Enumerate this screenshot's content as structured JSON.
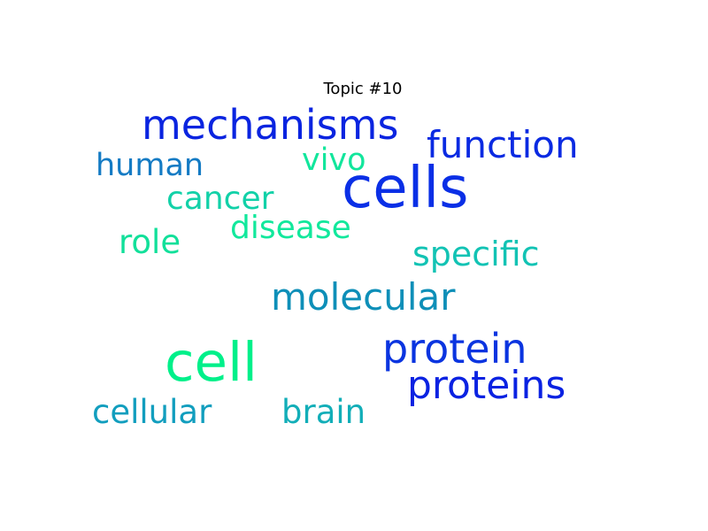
{
  "chart_data": {
    "type": "wordcloud",
    "title": "Topic #10",
    "words": [
      {
        "text": "cells",
        "weight": 1.0,
        "color": "#0a2fe6"
      },
      {
        "text": "cell",
        "weight": 0.95,
        "color": "#00f08a"
      },
      {
        "text": "mechanisms",
        "weight": 0.72,
        "color": "#0a24e0"
      },
      {
        "text": "protein",
        "weight": 0.72,
        "color": "#0a34e0"
      },
      {
        "text": "proteins",
        "weight": 0.68,
        "color": "#0a22e2"
      },
      {
        "text": "molecular",
        "weight": 0.66,
        "color": "#0e8fb8"
      },
      {
        "text": "function",
        "weight": 0.66,
        "color": "#0a2ae2"
      },
      {
        "text": "specific",
        "weight": 0.6,
        "color": "#12c3b4"
      },
      {
        "text": "cellular",
        "weight": 0.58,
        "color": "#129ebe"
      },
      {
        "text": "brain",
        "weight": 0.58,
        "color": "#12aeb8"
      },
      {
        "text": "role",
        "weight": 0.58,
        "color": "#12e09a"
      },
      {
        "text": "cancer",
        "weight": 0.56,
        "color": "#12d1a8"
      },
      {
        "text": "disease",
        "weight": 0.56,
        "color": "#12e89c"
      },
      {
        "text": "human",
        "weight": 0.54,
        "color": "#147bc4"
      },
      {
        "text": "vivo",
        "weight": 0.54,
        "color": "#12e69c"
      }
    ]
  }
}
